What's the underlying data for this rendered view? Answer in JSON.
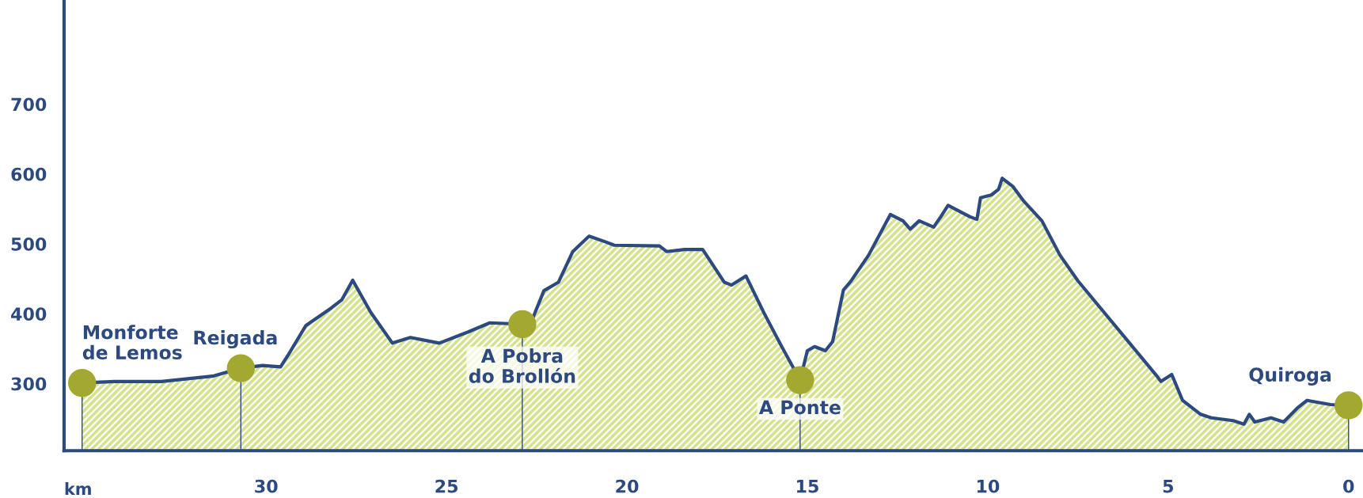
{
  "chart_data": {
    "type": "area",
    "xlabel": "km",
    "xlim": [
      35.6,
      -0.4
    ],
    "xticks": [
      30,
      25,
      20,
      15,
      10,
      5,
      0
    ],
    "ylim": [
      204,
      849
    ],
    "yticks": [
      300,
      400,
      500,
      600,
      700
    ],
    "grid": false,
    "legend": false,
    "series": [
      {
        "color": "#d4e38a",
        "x": [
          35.1,
          34.2,
          32.9,
          31.45,
          30.7,
          30.1,
          29.6,
          29.4,
          28.9,
          28.2,
          27.9,
          27.6,
          27.1,
          26.5,
          26.0,
          25.2,
          24.4,
          23.8,
          22.9,
          22.6,
          22.3,
          21.9,
          21.5,
          21.05,
          20.6,
          20.35,
          19.1,
          18.9,
          18.4,
          17.9,
          17.3,
          17.1,
          16.7,
          16.2,
          15.7,
          15.2,
          15.0,
          14.8,
          14.5,
          14.3,
          14.0,
          13.8,
          13.3,
          12.7,
          12.35,
          12.15,
          11.9,
          11.5,
          11.3,
          11.1,
          10.5,
          10.3,
          10.2,
          9.9,
          9.7,
          9.6,
          9.3,
          9.0,
          8.5,
          8.0,
          7.5,
          5.3,
          5.2,
          4.9,
          4.6,
          4.1,
          3.8,
          3.2,
          2.9,
          2.75,
          2.6,
          2.15,
          1.8,
          1.4,
          1.15,
          0.5,
          0
        ],
        "values": [
          301,
          303,
          303,
          311,
          322,
          326,
          324,
          340,
          383,
          408,
          420,
          448,
          402,
          358,
          366,
          358,
          374,
          387,
          385,
          395,
          433,
          445,
          489,
          511,
          503,
          498,
          497,
          489,
          492,
          492,
          445,
          441,
          454,
          401,
          352,
          305,
          347,
          353,
          347,
          360,
          434,
          446,
          484,
          542,
          533,
          521,
          533,
          524,
          539,
          555,
          539,
          535,
          566,
          570,
          578,
          594,
          582,
          561,
          533,
          484,
          447,
          310,
          303,
          313,
          276,
          256,
          251,
          247,
          242,
          256,
          245,
          251,
          245,
          266,
          276,
          270,
          269
        ]
      },
      {
        "type": "lollipop",
        "color": "#a3a930",
        "x": [
          35.1,
          30.7,
          22.9,
          15.2,
          0
        ],
        "values": [
          301,
          322,
          385,
          305,
          269
        ]
      }
    ],
    "annotations": [
      {
        "text": "Monforte\nde Lemos",
        "x": 35.1,
        "y": 301
      },
      {
        "text": "Reigada",
        "x": 30.7,
        "y": 322
      },
      {
        "text": "A Pobra\ndo Brollón",
        "x": 22.9,
        "y": 385
      },
      {
        "text": "A Ponte",
        "x": 15.2,
        "y": 305
      },
      {
        "text": "Quiroga",
        "x": 0,
        "y": 269
      }
    ]
  }
}
